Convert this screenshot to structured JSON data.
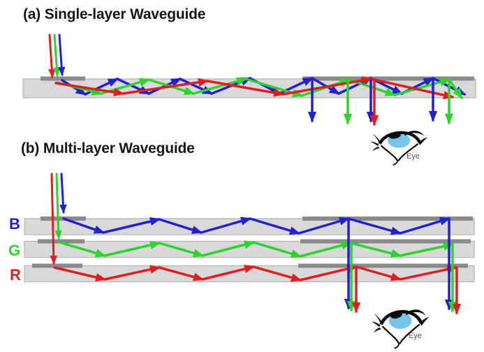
{
  "panels": {
    "a": {
      "title": "(a) Single-layer Waveguide"
    },
    "b": {
      "title": "(b) Multi-layer Waveguide",
      "layer_labels": [
        {
          "id": "blue",
          "label": "B"
        },
        {
          "id": "green",
          "label": "G"
        },
        {
          "id": "red",
          "label": "R"
        }
      ]
    }
  },
  "eye_label": "Eye",
  "icons": {
    "eye": "eye-icon"
  },
  "colors": {
    "red": "#df1f1f",
    "green": "#2cd42c",
    "blue": "#2121cd",
    "bar_fill": "#d9d9d9",
    "bar_edge": "#b5b5b5",
    "grating": "#8a8a8a",
    "title_text": "#171717",
    "eye_iris": "#76c4ea",
    "eye_label_text": "#555555",
    "background": "#ffffff"
  }
}
